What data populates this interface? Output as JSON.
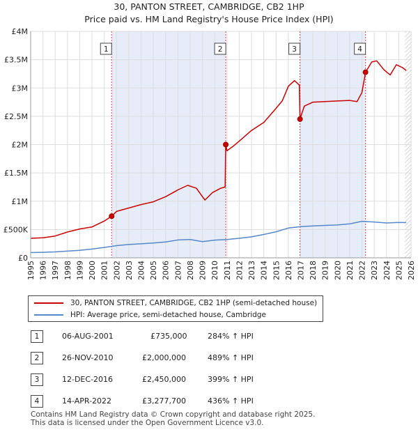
{
  "title_line1": "30, PANTON STREET, CAMBRIDGE, CB2 1HP",
  "title_line2": "Price paid vs. HM Land Registry's House Price Index (HPI)",
  "legend": {
    "property_label": "30, PANTON STREET, CAMBRIDGE, CB2 1HP (semi-detached house)",
    "hpi_label": "HPI: Average price, semi-detached house, Cambridge"
  },
  "colors": {
    "property": "#cc0000",
    "hpi": "#5588cc",
    "shade": "#e6ecf8",
    "grid": "#dddddd",
    "vline": "#dd4444"
  },
  "sales": [
    {
      "num": "1",
      "date": "06-AUG-2001",
      "price": "£735,000",
      "hpi": "284% ↑ HPI",
      "year": 2001.6,
      "value": 735000
    },
    {
      "num": "2",
      "date": "26-NOV-2010",
      "price": "£2,000,000",
      "hpi": "489% ↑ HPI",
      "year": 2010.9,
      "value": 2000000
    },
    {
      "num": "3",
      "date": "12-DEC-2016",
      "price": "£2,450,000",
      "hpi": "399% ↑ HPI",
      "year": 2016.95,
      "value": 2450000
    },
    {
      "num": "4",
      "date": "14-APR-2022",
      "price": "£3,277,700",
      "hpi": "436% ↑ HPI",
      "year": 2022.29,
      "value": 3277700
    }
  ],
  "footer_line1": "Contains HM Land Registry data © Crown copyright and database right 2025.",
  "footer_line2": "This data is licensed under the Open Government Licence v3.0.",
  "chart_data": {
    "type": "line",
    "title": "Price paid vs. HM Land Registry's House Price Index (HPI)",
    "xlabel": "",
    "ylabel": "",
    "xlim": [
      1995,
      2026
    ],
    "ylim": [
      0,
      4000000
    ],
    "x_ticks": [
      1995,
      1996,
      1997,
      1998,
      1999,
      2000,
      2001,
      2002,
      2003,
      2004,
      2005,
      2006,
      2007,
      2008,
      2009,
      2010,
      2011,
      2012,
      2013,
      2014,
      2015,
      2016,
      2017,
      2018,
      2019,
      2020,
      2021,
      2022,
      2023,
      2024,
      2025,
      2026
    ],
    "y_ticks": [
      {
        "value": 0,
        "label": "£0"
      },
      {
        "value": 500000,
        "label": "£500K"
      },
      {
        "value": 1000000,
        "label": "£1M"
      },
      {
        "value": 1500000,
        "label": "£1.5M"
      },
      {
        "value": 2000000,
        "label": "£2M"
      },
      {
        "value": 2500000,
        "label": "£2.5M"
      },
      {
        "value": 3000000,
        "label": "£3M"
      },
      {
        "value": 3500000,
        "label": "£3.5M"
      },
      {
        "value": 4000000,
        "label": "£4M"
      }
    ],
    "shaded_ranges": [
      [
        2001.6,
        2010.9
      ],
      [
        2016.95,
        2022.29
      ]
    ],
    "hatched_from": 2025.5,
    "series": [
      {
        "name": "30, PANTON STREET, CAMBRIDGE, CB2 1HP (semi-detached house)",
        "x": [
          1995,
          1996,
          1997,
          1998,
          1999,
          2000,
          2001,
          2001.6,
          2002,
          2003,
          2004,
          2005,
          2006,
          2007,
          2007.8,
          2008.5,
          2009.2,
          2009.8,
          2010.5,
          2010.85,
          2010.9,
          2011,
          2011.5,
          2012,
          2013,
          2014,
          2014.8,
          2015.5,
          2016,
          2016.5,
          2016.9,
          2016.95,
          2017.3,
          2018,
          2019,
          2020,
          2021,
          2021.6,
          2022,
          2022.29,
          2022.8,
          2023.2,
          2023.8,
          2024.3,
          2024.8,
          2025.3,
          2025.6
        ],
        "values": [
          345000,
          355000,
          385000,
          455000,
          510000,
          545000,
          650000,
          735000,
          820000,
          880000,
          940000,
          990000,
          1080000,
          1200000,
          1280000,
          1230000,
          1020000,
          1150000,
          1230000,
          1250000,
          2000000,
          1890000,
          1970000,
          2060000,
          2250000,
          2390000,
          2590000,
          2770000,
          3030000,
          3130000,
          3050000,
          2450000,
          2680000,
          2750000,
          2760000,
          2770000,
          2780000,
          2760000,
          2920000,
          3277700,
          3460000,
          3480000,
          3320000,
          3230000,
          3410000,
          3360000,
          3310000
        ]
      },
      {
        "name": "HPI: Average price, semi-detached house, Cambridge",
        "x": [
          1995,
          1996,
          1997,
          1998,
          1999,
          2000,
          2001,
          2002,
          2003,
          2004,
          2005,
          2006,
          2007,
          2008,
          2009,
          2010,
          2011,
          2012,
          2013,
          2014,
          2015,
          2016,
          2017,
          2018,
          2019,
          2020,
          2021,
          2022,
          2023,
          2024,
          2025,
          2025.6
        ],
        "values": [
          92000,
          97000,
          105000,
          118000,
          132000,
          155000,
          183000,
          215000,
          235000,
          248000,
          262000,
          280000,
          315000,
          322000,
          285000,
          312000,
          322000,
          345000,
          370000,
          412000,
          460000,
          525000,
          550000,
          562000,
          572000,
          580000,
          600000,
          645000,
          632000,
          615000,
          625000,
          622000
        ]
      }
    ]
  }
}
